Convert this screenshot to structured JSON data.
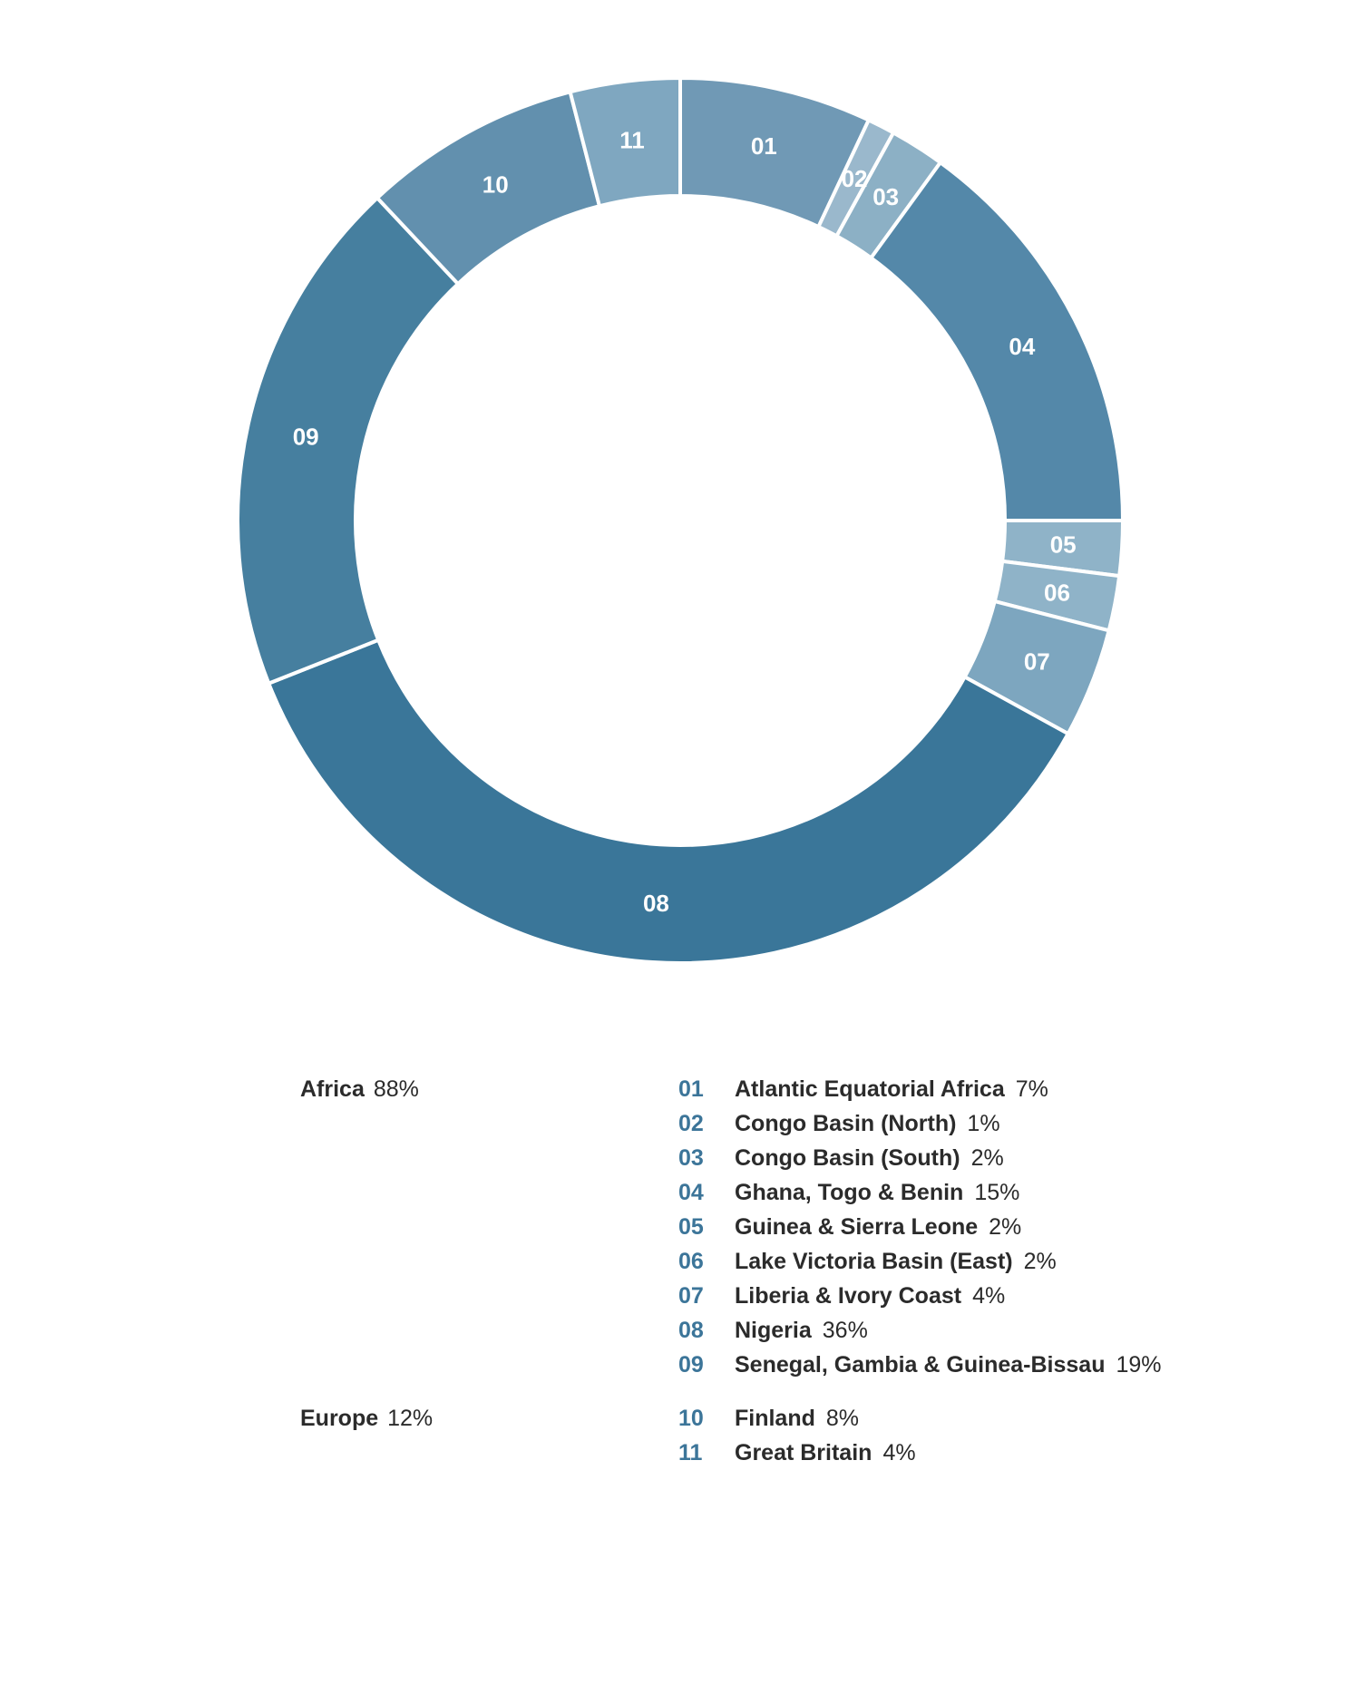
{
  "colors": {
    "shades": [
      "#7099b5",
      "#9ab8cc",
      "#8cb0c5",
      "#5488a9",
      "#8fb3c8",
      "#8fb3c8",
      "#7da6bf",
      "#3a7699",
      "#467f9f",
      "#6290ae",
      "#7fa7c0"
    ],
    "accent": "#3c7599",
    "separator": "#ffffff"
  },
  "chart_data": {
    "type": "pie",
    "categories": [
      "01",
      "02",
      "03",
      "04",
      "05",
      "06",
      "07",
      "08",
      "09",
      "10",
      "11"
    ],
    "values": [
      7,
      1,
      2,
      15,
      2,
      2,
      4,
      36,
      19,
      8,
      4
    ],
    "start_angle_deg": 0,
    "direction": "clockwise",
    "donut": true
  },
  "legend": {
    "groups": [
      {
        "name": "Africa",
        "pct": "88%"
      },
      {
        "name": "Europe",
        "pct": "12%"
      }
    ],
    "entries": [
      {
        "code": "01",
        "name": "Atlantic Equatorial Africa",
        "pct": "7%"
      },
      {
        "code": "02",
        "name": "Congo Basin (North)",
        "pct": "1%"
      },
      {
        "code": "03",
        "name": "Congo Basin (South)",
        "pct": "2%"
      },
      {
        "code": "04",
        "name": "Ghana, Togo & Benin",
        "pct": "15%"
      },
      {
        "code": "05",
        "name": "Guinea & Sierra Leone",
        "pct": "2%"
      },
      {
        "code": "06",
        "name": "Lake Victoria Basin (East)",
        "pct": "2%"
      },
      {
        "code": "07",
        "name": "Liberia & Ivory Coast",
        "pct": "4%"
      },
      {
        "code": "08",
        "name": "Nigeria",
        "pct": "36%"
      },
      {
        "code": "09",
        "name": "Senegal, Gambia & Guinea-Bissau",
        "pct": "19%"
      },
      {
        "code": "10",
        "name": "Finland",
        "pct": "8%"
      },
      {
        "code": "11",
        "name": "Great Britain",
        "pct": "4%"
      }
    ]
  }
}
